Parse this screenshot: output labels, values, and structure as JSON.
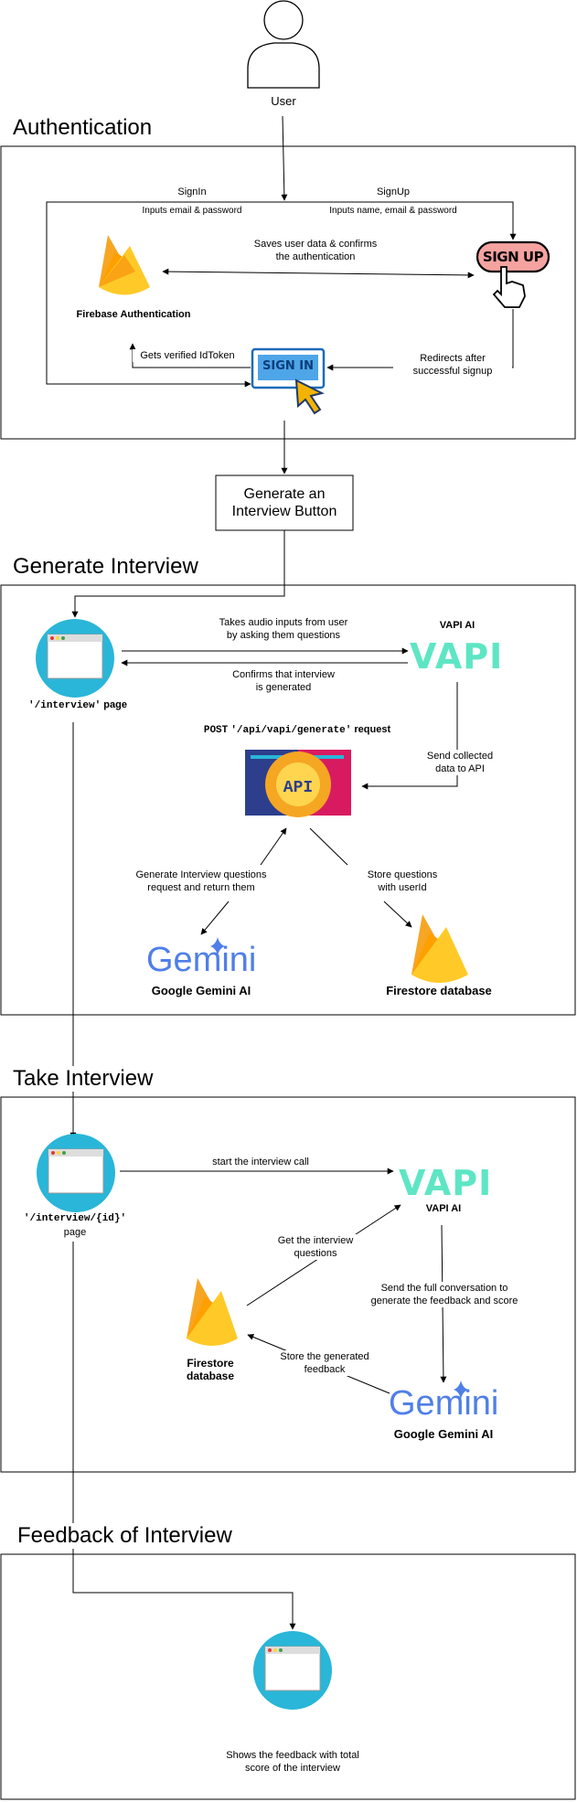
{
  "user": {
    "label": "User"
  },
  "sections": {
    "auth": "Authentication",
    "generate": "Generate Interview",
    "take": "Take Interview",
    "feedback": "Feedback of Interview"
  },
  "auth": {
    "signin_flow": "SignIn",
    "signup_flow": "SignUp",
    "signin_inputs": "Inputs email & password",
    "signup_inputs": "Inputs name, email & password",
    "saves_user": "Saves user data & confirms\nthe authentication",
    "firebase_label": "Firebase Authentication",
    "verified_token": "Gets verified IdToken",
    "redirects": "Redirects after\nsuccessful signup",
    "signup_button": "SIGN UP",
    "signin_button": "SIGN IN"
  },
  "generate_button": "Generate an\nInterview Button",
  "generate": {
    "takes_audio": "Takes audio inputs from user\nby asking them questions",
    "confirms": "Confirms that interview\nis generated",
    "vapi_label": "VAPI AI",
    "vapi_logo": "VAPI",
    "page_path": "'/interview'",
    "page_word": "page",
    "post_method": "POST",
    "post_path": "'/api/vapi/generate'",
    "post_word": "request",
    "send_collected": "Send collected\ndata to API",
    "api_label": "API",
    "gen_questions": "Generate Interview questions\nrequest and return them",
    "store_questions": "Store questions\nwith userId",
    "gemini_logo": "Gemini",
    "gemini_label": "Google Gemini AI",
    "firestore_label": "Firestore database"
  },
  "take": {
    "page_path": "'/interview/{id}'",
    "page_word": "page",
    "start_call": "start the interview call",
    "vapi_logo": "VAPI",
    "vapi_label": "VAPI AI",
    "get_questions": "Get the interview\nquestions",
    "send_full": "Send the full conversation to\ngenerate the feedback and score",
    "store_feedback": "Store the generated\nfeedback",
    "firestore_label": "Firestore\ndatabase",
    "gemini_logo": "Gemini",
    "gemini_label": "Google Gemini AI"
  },
  "feedback": {
    "shows": "Shows the feedback with total\nscore of the interview"
  },
  "colors": {
    "page_icon": "#29b6d8",
    "vapi": "#5ee6c4",
    "gemini": "#4f7fe8",
    "firebase_orange": "#f6a623",
    "firebase_yellow": "#ffca28",
    "signin_blue": "#1e6bb8",
    "signup_pink": "#f5a3a0"
  }
}
